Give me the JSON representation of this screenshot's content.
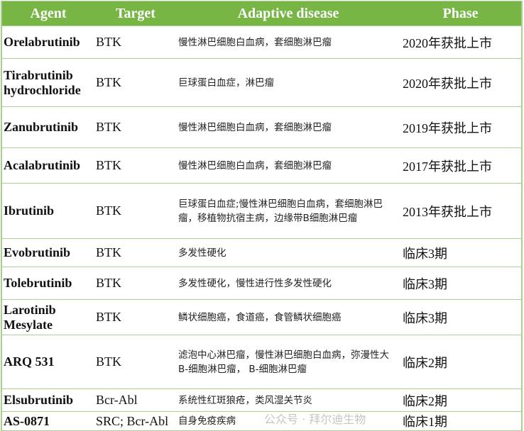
{
  "headers": [
    "Agent",
    "Target",
    "Adaptive disease",
    "Phase"
  ],
  "rows": [
    {
      "agent": "Orelabrutinib",
      "target": "BTK",
      "disease": "慢性淋巴细胞白血病，套细胞淋巴瘤",
      "phase": "2020年获批上市"
    },
    {
      "agent": "Tirabrutinib hydrochloride",
      "target": "BTK",
      "disease": "巨球蛋白血症，淋巴瘤",
      "phase": "2020年获批上市"
    },
    {
      "agent": "Zanubrutinib",
      "target": "BTK",
      "disease": "慢性淋巴细胞白血病，套细胞淋巴瘤",
      "phase": "2019年获批上市"
    },
    {
      "agent": "Acalabrutinib",
      "target": "BTK",
      "disease": "慢性淋巴细胞白血病，套细胞淋巴瘤",
      "phase": "2017年获批上市"
    },
    {
      "agent": "Ibrutinib",
      "target": "BTK",
      "disease": "巨球蛋白血症;慢性淋巴细胞白血病，套细胞淋巴瘤，移植物抗宿主病，边缘带B细胞淋巴瘤",
      "phase": "2013年获批上市"
    },
    {
      "agent": "Evobrutinib",
      "target": "BTK",
      "disease": "多发性硬化",
      "phase": "临床3期"
    },
    {
      "agent": "Tolebrutinib",
      "target": "BTK",
      "disease": "多发性硬化，慢性进行性多发性硬化",
      "phase": "临床3期"
    },
    {
      "agent": "Larotinib Mesylate",
      "target": "BTK",
      "disease": "鳞状细胞癌，食道癌，食管鳞状细胞癌",
      "phase": "临床3期"
    },
    {
      "agent": "ARQ 531",
      "target": "BTK",
      "disease": "滤泡中心淋巴瘤，慢性淋巴细胞白血病，弥漫性大B-细胞淋巴瘤， B-细胞淋巴瘤",
      "phase": "临床2期"
    },
    {
      "agent": "Elsubrutinib",
      "target": "Bcr-Abl",
      "disease": "系统性红斑狼疮，类风湿关节炎",
      "phase": "临床2期"
    },
    {
      "agent": "AS-0871",
      "target": "SRC; Bcr-Abl",
      "disease": "自身免疫疾病",
      "phase": "临床1期"
    }
  ],
  "watermark": "公众号 · 拜尔迪生物"
}
